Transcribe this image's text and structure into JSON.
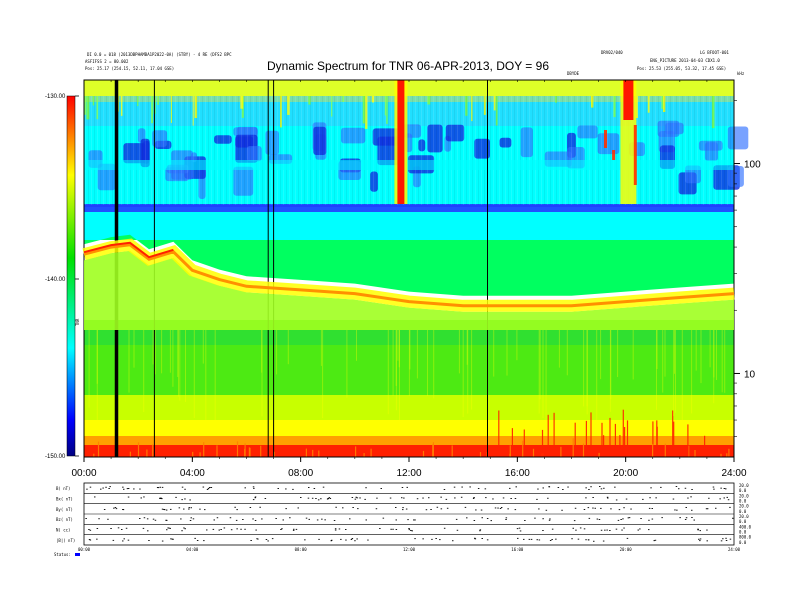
{
  "header": {
    "title": "Dynamic Spectrum for TNR 06-APR-2013, DOY = 96",
    "left_line1": "DI 0.0 = 018 (2013DBPHAMBA1P2022-0A) (STBY) - 4 RE (DFS2 BPC",
    "left_line2": "ASFIFSS 2 = 80.002",
    "left_pos": "Pos:    25.17 (254.15, 52.11, 17.04 GSE)",
    "center_label": "DRV02/040",
    "right_line1": "LG BFOOT-001",
    "right_line2": "ENG_PICTURE 2013-04-03 CDX1.0",
    "right_pos": "Pos:    25.53 (255.05, 53.32, 17.45 GSE)",
    "event_label": "DBYDE",
    "freq_unit": "kHz"
  },
  "colorbar": {
    "label": "TNR",
    "ticks": [
      "-130.00",
      "-140.00",
      "-150.00"
    ],
    "colors": [
      "#ff0000",
      "#ffff00",
      "#00e000",
      "#00ffff",
      "#0000ff",
      "#000080"
    ]
  },
  "axis_labels": {
    "x_ticks": [
      "00:00",
      "04:00",
      "08:00",
      "12:00",
      "16:00",
      "20:00",
      "24:00"
    ],
    "y_ticks": [
      "100",
      "10"
    ],
    "panel_rows": [
      "B( nT)",
      "Bx( nT)",
      "By( nT)",
      "Bz( nT)",
      "N( cc)",
      "|B|( nT)"
    ],
    "panel_right": [
      "20.0",
      "0.0",
      "20.0",
      "0.0",
      "20.0",
      "0.0",
      "20.0",
      "0.0",
      "400.0",
      "0.0",
      "800.0",
      "0.0"
    ],
    "panel_x_ticks": [
      "00:00",
      "04:00",
      "08:00",
      "12:00",
      "16:00",
      "20:00",
      "24:00"
    ],
    "status_label": "Status:"
  },
  "chart_data": {
    "type": "heatmap",
    "title": "Dynamic Spectrum for TNR 06-APR-2013, DOY = 96",
    "x_axis": {
      "label": "",
      "unit": "hours UT",
      "range": [
        0,
        24
      ],
      "ticks": [
        "00:00",
        "04:00",
        "08:00",
        "12:00",
        "16:00",
        "20:00",
        "24:00"
      ]
    },
    "y_axis": {
      "label": "",
      "unit": "kHz",
      "scale": "log",
      "range": [
        4,
        250
      ],
      "ticks": [
        "10",
        "100"
      ]
    },
    "color_scale": {
      "label": "TNR",
      "range": [
        -150,
        -130
      ],
      "ticks": [
        -130,
        -140,
        -150
      ]
    },
    "vertical_markers_hours": [
      1.2,
      2.6,
      6.8,
      7.0,
      14.9
    ],
    "type_iii_bursts_hours": [
      11.7,
      20.1
    ],
    "low_band_edge_kHz": 60,
    "plasma_line": [
      {
        "t": 0.0,
        "f": 37
      },
      {
        "t": 1.0,
        "f": 40
      },
      {
        "t": 1.7,
        "f": 41
      },
      {
        "t": 2.4,
        "f": 35
      },
      {
        "t": 3.3,
        "f": 38
      },
      {
        "t": 4.0,
        "f": 31
      },
      {
        "t": 5.0,
        "f": 28
      },
      {
        "t": 6.0,
        "f": 26
      },
      {
        "t": 8.0,
        "f": 25
      },
      {
        "t": 10.0,
        "f": 24
      },
      {
        "t": 12.0,
        "f": 22
      },
      {
        "t": 14.0,
        "f": 21
      },
      {
        "t": 16.0,
        "f": 21
      },
      {
        "t": 18.0,
        "f": 21
      },
      {
        "t": 20.0,
        "f": 22
      },
      {
        "t": 22.0,
        "f": 23
      },
      {
        "t": 24.0,
        "f": 24
      }
    ]
  }
}
